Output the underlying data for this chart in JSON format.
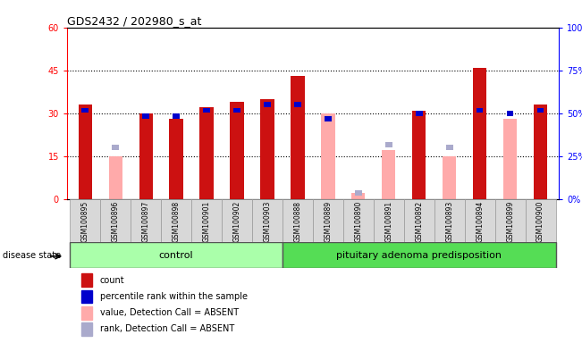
{
  "title": "GDS2432 / 202980_s_at",
  "samples": [
    "GSM100895",
    "GSM100896",
    "GSM100897",
    "GSM100898",
    "GSM100901",
    "GSM100902",
    "GSM100903",
    "GSM100888",
    "GSM100889",
    "GSM100890",
    "GSM100891",
    "GSM100892",
    "GSM100893",
    "GSM100894",
    "GSM100899",
    "GSM100900"
  ],
  "count_values": [
    33,
    0,
    30,
    28,
    32,
    34,
    35,
    43,
    0,
    0,
    0,
    31,
    0,
    46,
    0,
    33
  ],
  "absent_value_values": [
    0,
    15,
    0,
    0,
    0,
    0,
    0,
    0,
    30,
    2,
    17,
    0,
    15,
    0,
    28,
    0
  ],
  "percentile_rank": [
    31,
    0,
    29,
    29,
    31,
    31,
    33,
    33,
    28,
    0,
    0,
    30,
    0,
    31,
    30,
    31
  ],
  "absent_rank_values": [
    0,
    18,
    0,
    0,
    0,
    0,
    0,
    0,
    0,
    2,
    19,
    0,
    18,
    0,
    0,
    0
  ],
  "control_count": 7,
  "disease_count": 9,
  "control_label": "control",
  "disease_label": "pituitary adenoma predisposition",
  "disease_state_label": "disease state",
  "ylim_left": [
    0,
    60
  ],
  "ylim_right": [
    0,
    100
  ],
  "yticks_left": [
    0,
    15,
    30,
    45,
    60
  ],
  "yticks_right": [
    0,
    25,
    50,
    75,
    100
  ],
  "ytick_labels_left": [
    "0",
    "15",
    "30",
    "45",
    "60"
  ],
  "ytick_labels_right": [
    "0%",
    "25%",
    "50%",
    "75%",
    "100%"
  ],
  "color_count": "#cc1111",
  "color_percentile": "#0000cc",
  "color_absent_value": "#ffaaaa",
  "color_absent_rank": "#aaaacc",
  "color_control_bg": "#aaffaa",
  "color_disease_bg": "#55dd55",
  "bar_width": 0.45,
  "legend_items": [
    "count",
    "percentile rank within the sample",
    "value, Detection Call = ABSENT",
    "rank, Detection Call = ABSENT"
  ],
  "legend_colors": [
    "#cc1111",
    "#0000cc",
    "#ffaaaa",
    "#aaaacc"
  ]
}
